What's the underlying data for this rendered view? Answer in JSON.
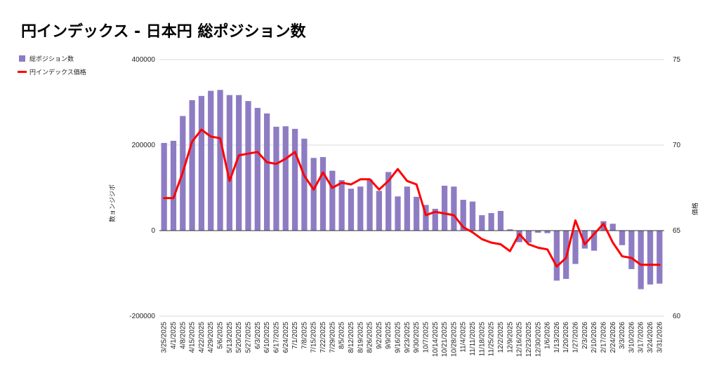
{
  "chart_data": {
    "type": "bar",
    "title": "円インデックス - 日本円 総ポジション数",
    "ylabel": "数ョンジジポ",
    "y2label": "価格",
    "ylim": [
      -200000,
      400000
    ],
    "y2lim": [
      60,
      75
    ],
    "yticks": [
      "400000",
      "200000",
      "0",
      "-200000"
    ],
    "y2ticks": [
      "75",
      "70",
      "65",
      "60"
    ],
    "grid": true,
    "legend_position": "left",
    "colors": {
      "bars": "#8e7cc3",
      "line": "#ff0000"
    },
    "categories": [
      "3/25/2025",
      "4/1/2025",
      "4/8/2025",
      "4/15/2025",
      "4/22/2025",
      "4/29/2025",
      "5/6/2025",
      "5/13/2025",
      "5/20/2025",
      "5/27/2025",
      "6/3/2025",
      "6/10/2025",
      "6/17/2025",
      "6/24/2025",
      "7/1/2025",
      "7/8/2025",
      "7/15/2025",
      "7/22/2025",
      "7/29/2025",
      "8/5/2025",
      "8/12/2025",
      "8/19/2025",
      "8/26/2025",
      "9/2/2025",
      "9/9/2025",
      "9/16/2025",
      "9/23/2025",
      "9/30/2025",
      "10/7/2025",
      "10/14/2025",
      "10/21/2025",
      "10/28/2025",
      "11/4/2025",
      "11/11/2025",
      "11/18/2025",
      "11/25/2025",
      "12/2/2025",
      "12/9/2025",
      "12/16/2025",
      "12/23/2025",
      "12/30/2025",
      "1/6/2026",
      "1/13/2026",
      "1/20/2026",
      "1/27/2026",
      "2/3/2026",
      "2/10/2026",
      "2/17/2026",
      "2/24/2026",
      "3/3/2026",
      "3/10/2026",
      "3/17/2026",
      "3/24/2026",
      "3/31/2026"
    ],
    "series": [
      {
        "name": "総ポジション数",
        "type": "bar",
        "axis": "left",
        "values": [
          205000,
          210000,
          268000,
          305000,
          315000,
          327000,
          329000,
          317000,
          317000,
          303000,
          287000,
          274000,
          243000,
          244000,
          238000,
          215000,
          170000,
          172000,
          140000,
          118000,
          98000,
          103000,
          120000,
          93000,
          137000,
          80000,
          103000,
          79000,
          60000,
          51000,
          105000,
          103000,
          72000,
          68000,
          36000,
          41000,
          46000,
          3000,
          -27000,
          -28000,
          -5000,
          -6000,
          -117000,
          -113000,
          -78000,
          -42000,
          -47000,
          22000,
          16000,
          -34000,
          -90000,
          -137000,
          -126000,
          -124000
        ]
      },
      {
        "name": "円インデックス価格",
        "type": "line",
        "axis": "right",
        "values": [
          66.9,
          66.9,
          68.4,
          70.2,
          70.9,
          70.5,
          70.4,
          67.9,
          69.4,
          69.5,
          69.6,
          69.0,
          68.9,
          69.2,
          69.6,
          68.2,
          67.4,
          68.4,
          67.5,
          67.8,
          67.7,
          68.0,
          68.0,
          67.4,
          67.9,
          68.6,
          67.9,
          67.7,
          65.9,
          66.1,
          66.0,
          65.9,
          65.2,
          64.9,
          64.5,
          64.3,
          64.2,
          63.8,
          64.8,
          64.2,
          64.0,
          63.9,
          62.9,
          63.4,
          65.6,
          64.2,
          64.8,
          65.4,
          64.3,
          63.5,
          63.4,
          63.0,
          63.0,
          63.0
        ]
      }
    ]
  }
}
